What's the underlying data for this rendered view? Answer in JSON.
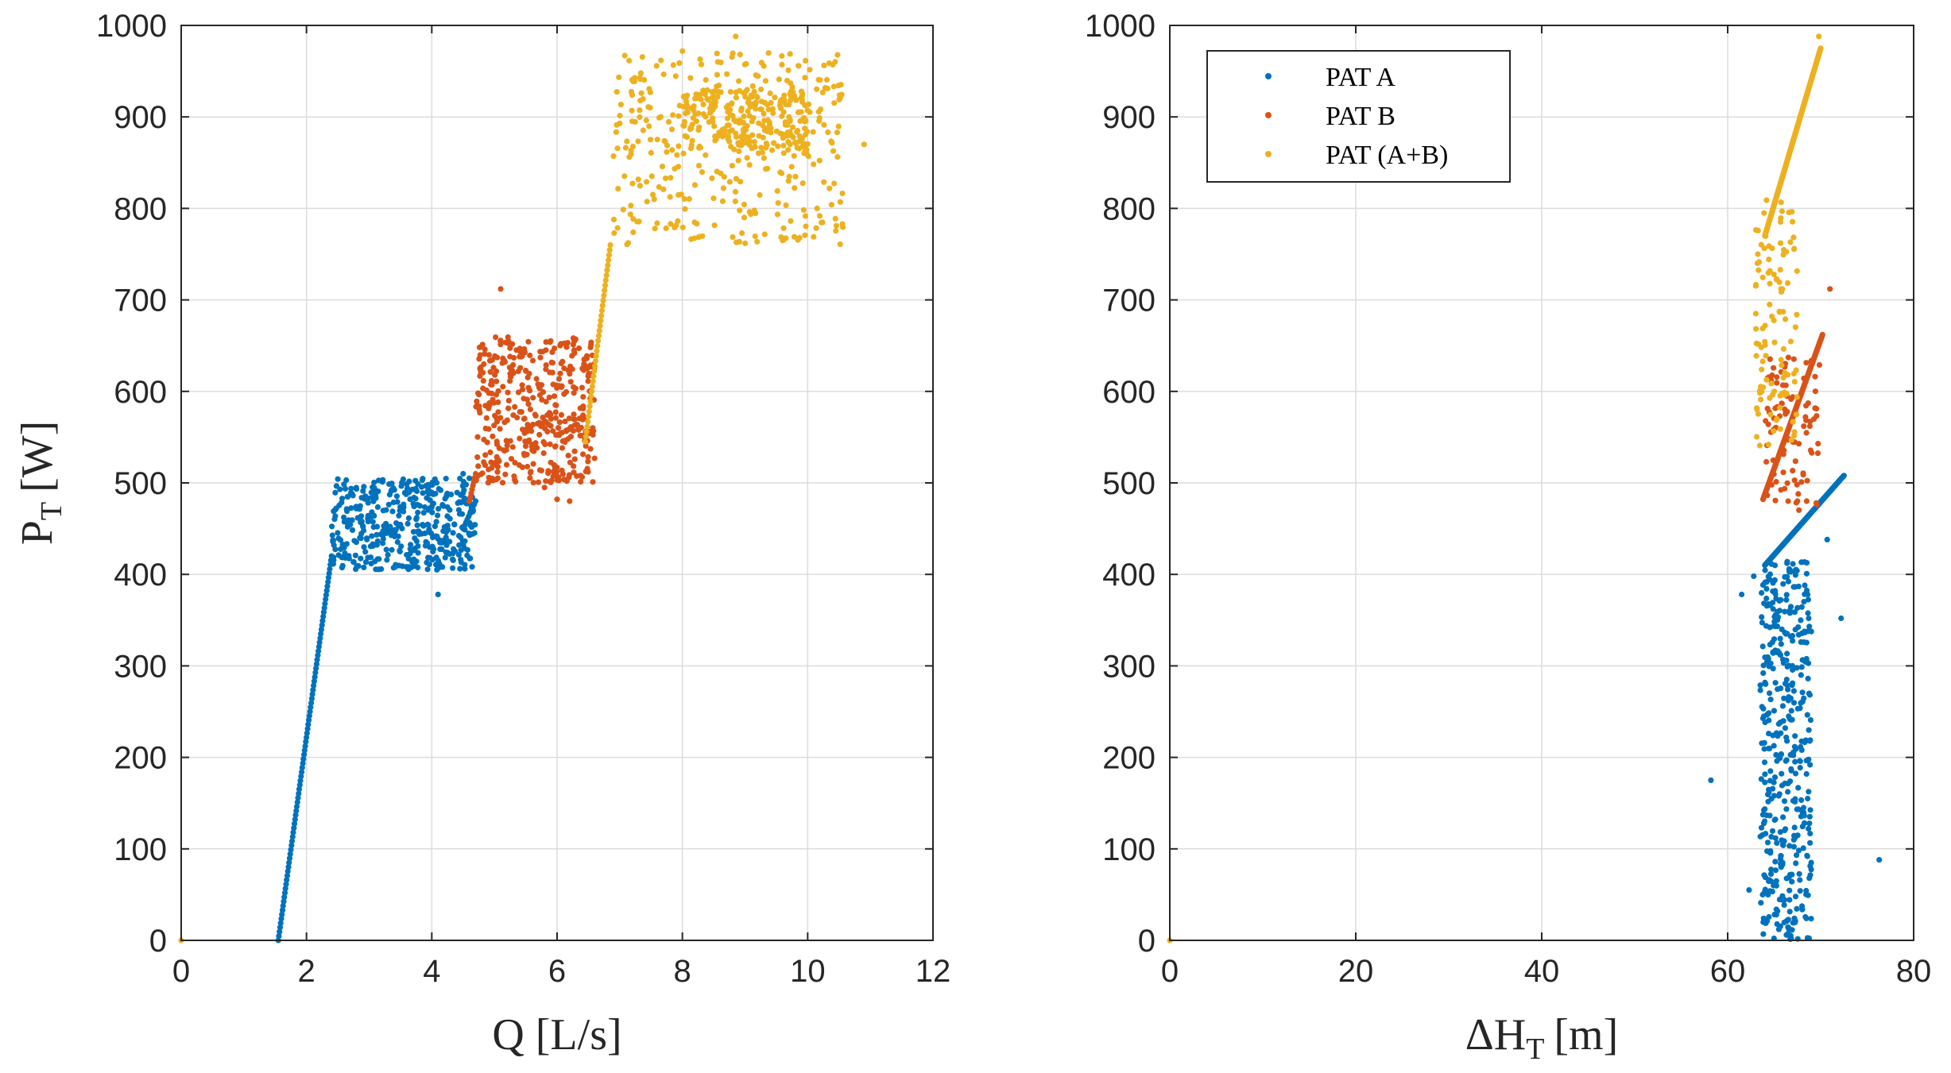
{
  "colors": {
    "pat_a": "#0072BD",
    "pat_b": "#D95319",
    "pat_ab": "#EDB120",
    "axis": "#262626",
    "grid": "#dcdcdc"
  },
  "legend": {
    "items": [
      "PAT A",
      "PAT B",
      "PAT (A+B)"
    ],
    "position": "top-left of right panel"
  },
  "chart_data": [
    {
      "type": "scatter",
      "xlabel": "Q [L/s]",
      "ylabel_main": "P",
      "ylabel_sub": "T",
      "ylabel_unit": "[W]",
      "xlim": [
        0,
        12
      ],
      "ylim": [
        0,
        1000
      ],
      "xticks": [
        0,
        2,
        4,
        6,
        8,
        10,
        12
      ],
      "yticks": [
        0,
        100,
        200,
        300,
        400,
        500,
        600,
        700,
        800,
        900,
        1000
      ],
      "grid": true,
      "series": [
        {
          "name": "PAT A",
          "clusters": [
            {
              "kind": "line",
              "x0": 1.55,
              "y0": 0,
              "x1": 2.4,
              "y1": 420,
              "n": 90
            },
            {
              "kind": "cloud",
              "xmin": 2.4,
              "xmax": 4.7,
              "ymin": 405,
              "ymax": 505,
              "n": 420
            },
            {
              "kind": "line",
              "x0": 4.5,
              "y0": 450,
              "x1": 4.7,
              "y1": 480,
              "n": 10
            }
          ],
          "points": [
            [
              4.1,
              378
            ],
            [
              4.5,
              510
            ],
            [
              4.6,
              505
            ]
          ]
        },
        {
          "name": "PAT B",
          "clusters": [
            {
              "kind": "line",
              "x0": 4.6,
              "y0": 480,
              "x1": 4.7,
              "y1": 510,
              "n": 8
            },
            {
              "kind": "cloud",
              "xmin": 4.7,
              "xmax": 6.6,
              "ymin": 500,
              "ymax": 660,
              "n": 420
            }
          ],
          "points": [
            [
              5.1,
              712
            ],
            [
              6.0,
              482
            ],
            [
              6.2,
              480
            ],
            [
              5.8,
              495
            ]
          ]
        },
        {
          "name": "PAT (A+B)",
          "clusters": [
            {
              "kind": "line",
              "x0": 6.45,
              "y0": 545,
              "x1": 6.85,
              "y1": 760,
              "n": 40
            },
            {
              "kind": "cloud",
              "xmin": 6.9,
              "xmax": 10.6,
              "ymin": 760,
              "ymax": 970,
              "n": 330
            },
            {
              "kind": "cloud",
              "xmin": 8.0,
              "xmax": 10.0,
              "ymin": 860,
              "ymax": 930,
              "n": 220
            }
          ],
          "points": [
            [
              0,
              0
            ],
            [
              8.85,
              988
            ],
            [
              8.0,
              972
            ],
            [
              9.6,
              765
            ],
            [
              8.95,
              773
            ],
            [
              10.9,
              870
            ],
            [
              10.4,
              957
            ],
            [
              10.15,
              800
            ]
          ]
        }
      ]
    },
    {
      "type": "scatter",
      "xlabel": "ΔH",
      "xlabel_sub": "T",
      "xlabel_unit": "[m]",
      "xlim": [
        0,
        80
      ],
      "ylim": [
        0,
        1000
      ],
      "xticks": [
        0,
        20,
        40,
        60,
        80
      ],
      "yticks": [
        0,
        100,
        200,
        300,
        400,
        500,
        600,
        700,
        800,
        900,
        1000
      ],
      "grid": true,
      "series": [
        {
          "name": "PAT A",
          "clusters": [
            {
              "kind": "line",
              "x0": 64.0,
              "y0": 410,
              "x1": 72.5,
              "y1": 508,
              "n": 170
            },
            {
              "kind": "cloud",
              "xmin": 63.5,
              "xmax": 69.0,
              "ymin": 0,
              "ymax": 415,
              "n": 420
            }
          ],
          "points": [
            [
              58.2,
              175
            ],
            [
              76.3,
              88
            ],
            [
              62.3,
              55
            ],
            [
              61.5,
              378
            ],
            [
              70.7,
              438
            ],
            [
              72.2,
              352
            ],
            [
              62.8,
              398
            ]
          ]
        },
        {
          "name": "PAT B",
          "clusters": [
            {
              "kind": "line",
              "x0": 63.8,
              "y0": 482,
              "x1": 70.2,
              "y1": 662,
              "n": 160
            },
            {
              "kind": "cloud",
              "xmin": 64.0,
              "xmax": 70.0,
              "ymin": 470,
              "ymax": 640,
              "n": 90
            }
          ],
          "points": [
            [
              71.0,
              712
            ],
            [
              66.5,
              480
            ],
            [
              67.5,
              480
            ],
            [
              68.5,
              480
            ]
          ]
        },
        {
          "name": "PAT (A+B)",
          "clusters": [
            {
              "kind": "line",
              "x0": 64.0,
              "y0": 770,
              "x1": 70.0,
              "y1": 975,
              "n": 200
            },
            {
              "kind": "cloud",
              "xmin": 63.0,
              "xmax": 67.5,
              "ymin": 540,
              "ymax": 810,
              "n": 110
            }
          ],
          "points": [
            [
              0,
              0
            ],
            [
              69.8,
              988
            ],
            [
              63.2,
              740
            ],
            [
              65.0,
              600
            ],
            [
              64.5,
              695
            ]
          ]
        }
      ]
    }
  ]
}
